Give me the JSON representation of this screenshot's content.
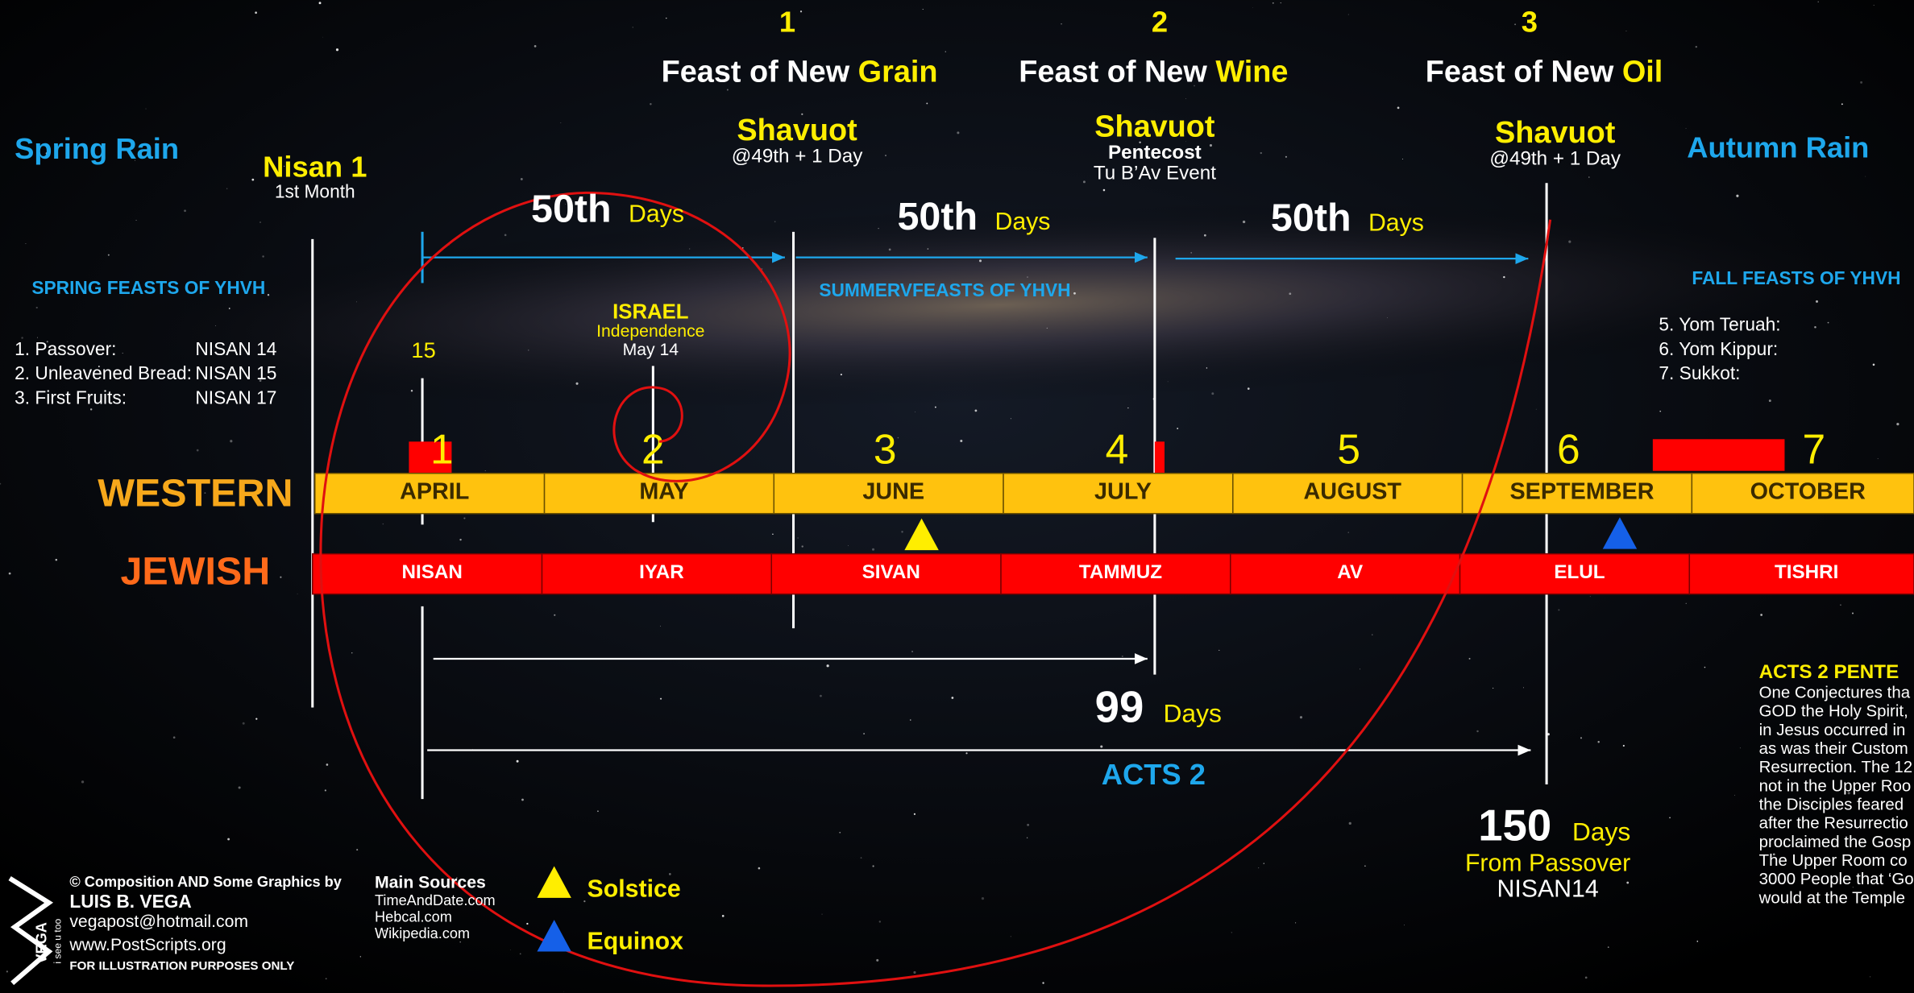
{
  "feasts": [
    {
      "number": "1",
      "label": "Feast of New ",
      "highlight": "Grain"
    },
    {
      "number": "2",
      "label": "Feast of New ",
      "highlight": "Wine"
    },
    {
      "number": "3",
      "label": "Feast of New ",
      "highlight": "Oil"
    }
  ],
  "rains": {
    "spring": "Spring Rain",
    "autumn": "Autumn Rain"
  },
  "nisan1": {
    "title": "Nisan 1",
    "subtitle": "1st Month"
  },
  "shavuot": [
    {
      "title": "Shavuot",
      "lines": [
        "@49th + 1 Day"
      ]
    },
    {
      "title": "Shavuot",
      "lines": [
        "Pentecost",
        "Tu B’Av Event"
      ]
    },
    {
      "title": "Shavuot",
      "lines": [
        "@49th + 1 Day"
      ]
    }
  ],
  "intervals": [
    {
      "number": "50th",
      "unit": "Days"
    },
    {
      "number": "50th",
      "unit": "Days"
    },
    {
      "number": "50th",
      "unit": "Days"
    }
  ],
  "spring_feasts": {
    "title": "SPRING FEASTS OF YHVH",
    "items": [
      [
        "1. Passover:",
        "NISAN 14"
      ],
      [
        "2. Unleavened Bread:",
        "NISAN 15"
      ],
      [
        "3. First Fruits:",
        "NISAN 17"
      ]
    ]
  },
  "israel": {
    "title": "ISRAEL",
    "subtitle": "Independence",
    "date": "May 14"
  },
  "summer_feasts": {
    "title": "SUMMERVFEASTS OF YHVH"
  },
  "fall_feasts": {
    "title": "FALL FEASTS OF YHVH",
    "items": [
      "5. Yom Teruah:",
      "6. Yom Kippur:",
      "7. Sukkot:"
    ]
  },
  "day_marker": "15",
  "month_numbers": [
    "1",
    "2",
    "3",
    "4",
    "5",
    "6",
    "7"
  ],
  "calendars": {
    "western": {
      "label": "WESTERN",
      "months": [
        "APRIL",
        "MAY",
        "JUNE",
        "JULY",
        "AUGUST",
        "SEPTEMBER",
        "OCTOBER"
      ]
    },
    "jewish": {
      "label": "JEWISH",
      "months": [
        "NISAN",
        "IYAR",
        "SIVAN",
        "TAMMUZ",
        "AV",
        "ELUL",
        "TISHRI"
      ]
    }
  },
  "spans": {
    "d99": {
      "number": "99",
      "unit": "Days"
    },
    "acts2": "ACTS 2",
    "d150": {
      "number": "150",
      "unit": "Days",
      "lines": [
        "From Passover",
        "NISAN14"
      ]
    }
  },
  "acts2_note": {
    "title": "ACTS 2 PENTE",
    "lines": [
      "One Conjectures tha",
      "GOD the Holy Spirit,",
      "in Jesus occurred in",
      "as was their Custom",
      "Resurrection. The 12",
      "not in the Upper Roo",
      "the Disciples feared",
      "after the Resurrectio",
      "proclaimed the Gosp",
      "The Upper Room co",
      "3000 People that ‘Go",
      "would at the Temple"
    ]
  },
  "credits": {
    "heading": "© Composition AND Some Graphics  by",
    "author": "LUIS B. VEGA",
    "email": "vegapost@hotmail.com",
    "website": "www.PostScripts.org",
    "disclaimer": "FOR ILLUSTRATION PURPOSES ONLY"
  },
  "sources": {
    "title": "Main Sources",
    "items": [
      "TimeAndDate.com",
      "Hebcal.com",
      "Wikipedia.com"
    ]
  },
  "legend": [
    "Solstice",
    "Equinox"
  ],
  "logo": {
    "name": "VEGA",
    "tagline": "i see u too"
  }
}
